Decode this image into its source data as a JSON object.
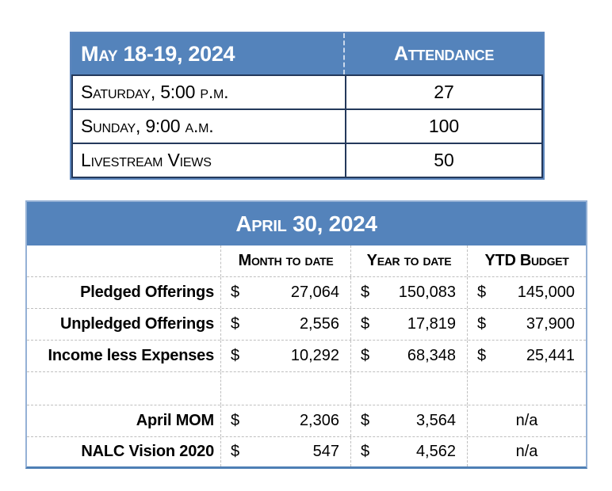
{
  "colors": {
    "header_blue": "#5483BB",
    "navy_border": "#24395B",
    "outer_blue": "#5D87BE",
    "light_blue_border": "#95B1D5",
    "bottom_border_blue": "#4E7FB5",
    "dashed_gray": "#BFBFBF"
  },
  "attendance_table": {
    "title": "May 18-19,  2024",
    "value_header": "Attendance",
    "rows": [
      {
        "label": "Saturday, 5:00 p.m.",
        "value": "27"
      },
      {
        "label": "Sunday, 9:00 a.m.",
        "value": "100"
      },
      {
        "label": "Livestream Views",
        "value": "50"
      }
    ]
  },
  "finance_table": {
    "title": "April 30, 2024",
    "currency_symbol": "$",
    "column_headers": [
      "Month to date",
      "Year to date",
      "YTD Budget"
    ],
    "rows": [
      {
        "label": "Pledged Offerings",
        "month_to_date": "27,064",
        "year_to_date": "150,083",
        "ytd_budget": "145,000"
      },
      {
        "label": "Unpledged Offerings",
        "month_to_date": "2,556",
        "year_to_date": "17,819",
        "ytd_budget": "37,900"
      },
      {
        "label": "Income less Expenses",
        "month_to_date": "10,292",
        "year_to_date": "68,348",
        "ytd_budget": "25,441"
      },
      {
        "label": "April MOM",
        "month_to_date": "2,306",
        "year_to_date": "3,564",
        "ytd_budget": "n/a"
      },
      {
        "label": "NALC Vision 2020",
        "month_to_date": "547",
        "year_to_date": "4,562",
        "ytd_budget": "n/a"
      }
    ]
  }
}
